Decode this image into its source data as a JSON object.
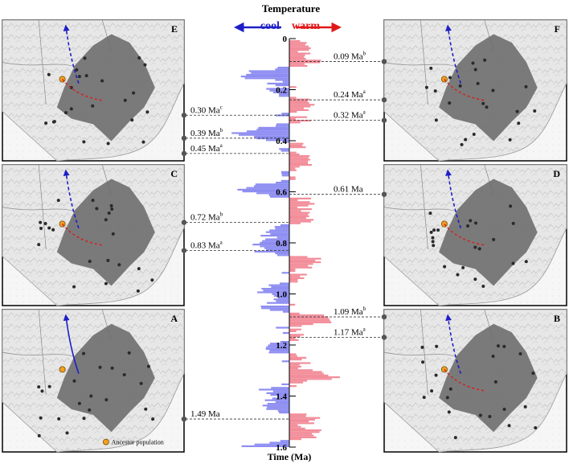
{
  "header": {
    "title": "Temperature",
    "cool_label": "cool",
    "warm_label": "warm"
  },
  "axis": {
    "title": "Time (Ma)",
    "tick_labels": [
      "0",
      "0.2",
      "0.4",
      "0.6",
      "0.8",
      "1.0",
      "1.2",
      "1.4",
      "1.6"
    ]
  },
  "legend": {
    "ancestor_label": "Ancestor population"
  },
  "panels": [
    {
      "label": "E"
    },
    {
      "label": "F"
    },
    {
      "label": "C"
    },
    {
      "label": "D"
    },
    {
      "label": "A"
    },
    {
      "label": "B"
    }
  ],
  "events_left": [
    {
      "time": "0.30",
      "unit": " Ma",
      "sup": "c"
    },
    {
      "time": "0.39",
      "unit": " Ma",
      "sup": "b"
    },
    {
      "time": "0.45",
      "unit": " Ma",
      "sup": "a"
    },
    {
      "time": "0.72",
      "unit": " Ma",
      "sup": "b"
    },
    {
      "time": "0.83",
      "unit": " Ma",
      "sup": "a"
    },
    {
      "time": "1.49",
      "unit": " Ma",
      "sup": ""
    }
  ],
  "events_right": [
    {
      "time": "0.09",
      "unit": " Ma",
      "sup": "b"
    },
    {
      "time": "0.24",
      "unit": " Ma",
      "sup": "a"
    },
    {
      "time": "0.32",
      "unit": " Ma",
      "sup": "a"
    },
    {
      "time": "0.61",
      "unit": " Ma",
      "sup": ""
    },
    {
      "time": "1.09",
      "unit": " Ma",
      "sup": "b"
    },
    {
      "time": "1.17",
      "unit": " Ma",
      "sup": "a"
    }
  ],
  "colors": {
    "cool": "#8e8ef2",
    "warm": "#f28e9a",
    "cool_arrow": "#1e1ec8",
    "warm_arrow": "#e01818",
    "range": "#6e6e6e"
  }
}
